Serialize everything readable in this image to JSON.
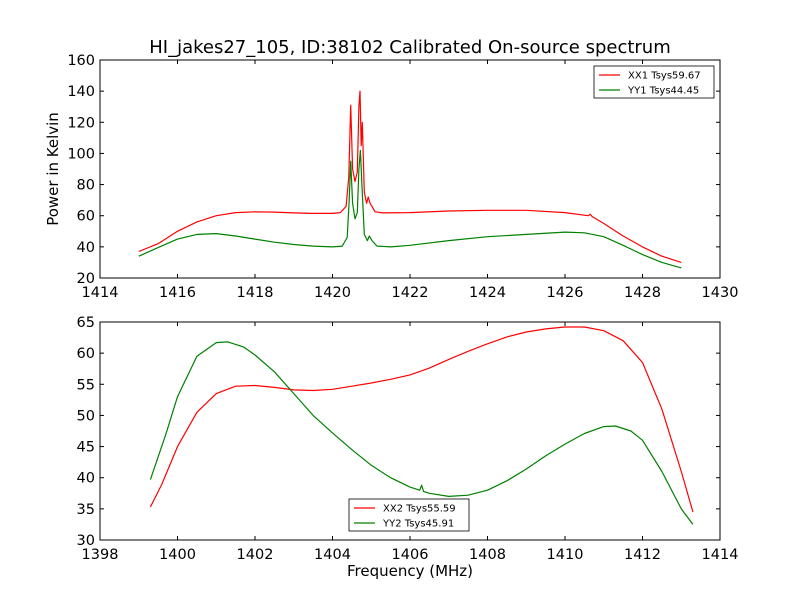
{
  "chart_data": [
    {
      "type": "line",
      "title": "HI_jakes27_105, ID:38102 Calibrated On-source spectrum",
      "xlabel": "",
      "ylabel": "Power in Kelvin",
      "xlim": [
        1414,
        1430
      ],
      "ylim": [
        20,
        160
      ],
      "xticks": [
        1414,
        1416,
        1418,
        1420,
        1422,
        1424,
        1426,
        1428,
        1430
      ],
      "yticks": [
        20,
        40,
        60,
        80,
        100,
        120,
        140,
        160
      ],
      "grid": false,
      "legend_position": "top-right",
      "series": [
        {
          "name": "XX1 Tsys59.67",
          "color": "#ff0000",
          "points": [
            [
              1415.0,
              37
            ],
            [
              1415.5,
              42
            ],
            [
              1416.0,
              50
            ],
            [
              1416.5,
              56
            ],
            [
              1417.0,
              60
            ],
            [
              1417.5,
              62
            ],
            [
              1418.0,
              62.5
            ],
            [
              1418.5,
              62.3
            ],
            [
              1419.0,
              61.8
            ],
            [
              1419.5,
              61.5
            ],
            [
              1420.0,
              61.5
            ],
            [
              1420.2,
              62
            ],
            [
              1420.35,
              66
            ],
            [
              1420.42,
              85
            ],
            [
              1420.47,
              131
            ],
            [
              1420.52,
              90
            ],
            [
              1420.58,
              82
            ],
            [
              1420.64,
              88
            ],
            [
              1420.68,
              130
            ],
            [
              1420.71,
              140
            ],
            [
              1420.74,
              105
            ],
            [
              1420.77,
              120
            ],
            [
              1420.82,
              75
            ],
            [
              1420.88,
              68
            ],
            [
              1420.92,
              72
            ],
            [
              1420.97,
              68
            ],
            [
              1421.02,
              66
            ],
            [
              1421.1,
              62.5
            ],
            [
              1421.3,
              61.8
            ],
            [
              1422.0,
              62
            ],
            [
              1423.0,
              63
            ],
            [
              1424.0,
              63.5
            ],
            [
              1425.0,
              63.5
            ],
            [
              1426.0,
              62
            ],
            [
              1426.6,
              60
            ],
            [
              1426.65,
              61
            ],
            [
              1426.7,
              59.5
            ],
            [
              1427.0,
              55
            ],
            [
              1427.5,
              47
            ],
            [
              1428.0,
              40
            ],
            [
              1428.5,
              34
            ],
            [
              1429.0,
              30
            ]
          ]
        },
        {
          "name": "YY1 Tsys44.45",
          "color": "#008000",
          "points": [
            [
              1415.0,
              34
            ],
            [
              1415.5,
              39.5
            ],
            [
              1416.0,
              45
            ],
            [
              1416.5,
              48
            ],
            [
              1417.0,
              48.5
            ],
            [
              1417.5,
              47
            ],
            [
              1418.0,
              45
            ],
            [
              1418.5,
              43
            ],
            [
              1419.0,
              41.5
            ],
            [
              1419.5,
              40.5
            ],
            [
              1420.0,
              40
            ],
            [
              1420.25,
              40.5
            ],
            [
              1420.38,
              46
            ],
            [
              1420.43,
              70
            ],
            [
              1420.47,
              95
            ],
            [
              1420.52,
              68
            ],
            [
              1420.58,
              58
            ],
            [
              1420.64,
              62
            ],
            [
              1420.68,
              90
            ],
            [
              1420.72,
              102
            ],
            [
              1420.76,
              80
            ],
            [
              1420.82,
              48
            ],
            [
              1420.9,
              44
            ],
            [
              1420.95,
              47
            ],
            [
              1421.02,
              44
            ],
            [
              1421.15,
              40.5
            ],
            [
              1421.5,
              40
            ],
            [
              1422.0,
              41
            ],
            [
              1423.0,
              44
            ],
            [
              1424.0,
              46.5
            ],
            [
              1425.0,
              48
            ],
            [
              1426.0,
              49.5
            ],
            [
              1426.5,
              49
            ],
            [
              1427.0,
              46.5
            ],
            [
              1427.5,
              41
            ],
            [
              1428.0,
              35
            ],
            [
              1428.5,
              30
            ],
            [
              1429.0,
              26.5
            ]
          ]
        }
      ]
    },
    {
      "type": "line",
      "title": "",
      "xlabel": "Frequency (MHz)",
      "ylabel": "",
      "xlim": [
        1398,
        1414
      ],
      "ylim": [
        30,
        65
      ],
      "xticks": [
        1398,
        1400,
        1402,
        1404,
        1406,
        1408,
        1410,
        1412,
        1414
      ],
      "yticks": [
        30,
        35,
        40,
        45,
        50,
        55,
        60,
        65
      ],
      "grid": false,
      "legend_position": "lower-center",
      "series": [
        {
          "name": "XX2 Tsys55.59",
          "color": "#ff0000",
          "points": [
            [
              1399.3,
              35.3
            ],
            [
              1399.6,
              39
            ],
            [
              1400.0,
              45
            ],
            [
              1400.5,
              50.5
            ],
            [
              1401.0,
              53.5
            ],
            [
              1401.5,
              54.7
            ],
            [
              1402.0,
              54.8
            ],
            [
              1402.5,
              54.5
            ],
            [
              1403.0,
              54.1
            ],
            [
              1403.5,
              54
            ],
            [
              1404.0,
              54.2
            ],
            [
              1404.5,
              54.7
            ],
            [
              1405.0,
              55.2
            ],
            [
              1405.5,
              55.8
            ],
            [
              1406.0,
              56.5
            ],
            [
              1406.5,
              57.6
            ],
            [
              1407.0,
              59
            ],
            [
              1407.5,
              60.3
            ],
            [
              1408.0,
              61.5
            ],
            [
              1408.5,
              62.6
            ],
            [
              1409.0,
              63.4
            ],
            [
              1409.5,
              63.9
            ],
            [
              1410.0,
              64.2
            ],
            [
              1410.5,
              64.2
            ],
            [
              1411.0,
              63.6
            ],
            [
              1411.5,
              62
            ],
            [
              1412.0,
              58.5
            ],
            [
              1412.5,
              51
            ],
            [
              1413.0,
              41
            ],
            [
              1413.3,
              34.5
            ]
          ]
        },
        {
          "name": "YY2 Tsys45.91",
          "color": "#008000",
          "points": [
            [
              1399.3,
              39.7
            ],
            [
              1399.7,
              47
            ],
            [
              1400.0,
              53
            ],
            [
              1400.5,
              59.5
            ],
            [
              1401.0,
              61.7
            ],
            [
              1401.3,
              61.8
            ],
            [
              1401.7,
              61
            ],
            [
              1402.0,
              59.7
            ],
            [
              1402.5,
              57
            ],
            [
              1403.0,
              53.5
            ],
            [
              1403.5,
              50
            ],
            [
              1404.0,
              47.2
            ],
            [
              1404.5,
              44.5
            ],
            [
              1405.0,
              42
            ],
            [
              1405.5,
              40
            ],
            [
              1406.0,
              38.5
            ],
            [
              1406.25,
              38
            ],
            [
              1406.3,
              38.8
            ],
            [
              1406.35,
              37.8
            ],
            [
              1406.5,
              37.5
            ],
            [
              1407.0,
              37
            ],
            [
              1407.5,
              37.2
            ],
            [
              1408.0,
              38
            ],
            [
              1408.5,
              39.5
            ],
            [
              1409.0,
              41.4
            ],
            [
              1409.5,
              43.5
            ],
            [
              1410.0,
              45.4
            ],
            [
              1410.5,
              47.1
            ],
            [
              1411.0,
              48.2
            ],
            [
              1411.3,
              48.3
            ],
            [
              1411.7,
              47.5
            ],
            [
              1412.0,
              46
            ],
            [
              1412.5,
              41
            ],
            [
              1413.0,
              35
            ],
            [
              1413.3,
              32.5
            ]
          ]
        }
      ]
    }
  ]
}
